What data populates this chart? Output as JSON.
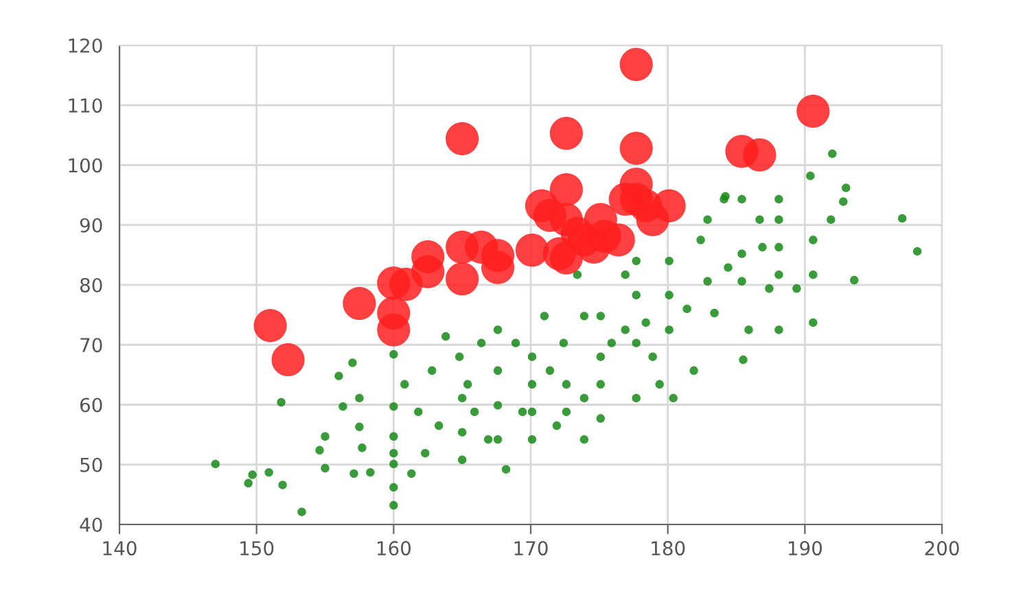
{
  "chart_data": {
    "type": "scatter",
    "xlim": [
      140,
      200
    ],
    "xticks": [
      140,
      150,
      160,
      170,
      180,
      190,
      200
    ],
    "ylim": [
      40,
      120
    ],
    "yticks": [
      40,
      50,
      60,
      70,
      80,
      90,
      100,
      110,
      120
    ],
    "grid": true,
    "marker": "circle",
    "series": [
      {
        "color": "#168a16",
        "x": [
          147.0,
          149.4,
          149.7,
          150.9,
          153.3,
          151.8,
          151.9,
          154.6,
          155.0,
          155.0,
          156.0,
          156.3,
          157.0,
          157.5,
          157.5,
          157.1,
          157.7,
          158.3,
          160.0,
          160.0,
          160.0,
          160.0,
          160.0,
          160.0,
          160.0,
          160.8,
          161.3,
          161.8,
          162.3,
          162.8,
          163.3,
          163.8,
          164.8,
          165.0,
          165.0,
          165.0,
          165.4,
          165.9,
          166.4,
          166.9,
          167.6,
          167.6,
          167.6,
          167.6,
          168.2,
          168.9,
          169.4,
          170.1,
          170.1,
          170.1,
          170.1,
          171.0,
          171.4,
          171.9,
          172.4,
          172.6,
          172.6,
          173.4,
          173.9,
          173.9,
          173.9,
          175.1,
          175.1,
          175.1,
          175.1,
          175.9,
          176.9,
          176.9,
          177.7,
          177.7,
          177.7,
          177.7,
          178.4,
          178.9,
          179.4,
          180.1,
          180.1,
          180.1,
          180.4,
          181.4,
          181.9,
          182.4,
          182.9,
          182.9,
          183.4,
          184.1,
          184.4,
          185.4,
          185.4,
          185.4,
          185.5,
          185.9,
          186.7,
          186.9,
          187.4,
          188.1,
          188.1,
          188.1,
          188.1,
          188.1,
          189.4,
          190.4,
          190.6,
          190.6,
          190.6,
          192.0,
          191.9,
          192.8,
          193.0,
          193.6,
          197.1,
          198.2,
          184.2
        ],
        "values": [
          50.1,
          46.9,
          48.3,
          48.7,
          42.1,
          60.4,
          46.6,
          52.4,
          54.7,
          49.4,
          64.8,
          59.7,
          67.0,
          61.1,
          56.3,
          48.5,
          52.8,
          48.7,
          51.9,
          68.4,
          59.7,
          54.7,
          50.1,
          46.2,
          43.2,
          63.4,
          48.5,
          58.8,
          51.9,
          65.7,
          56.5,
          71.4,
          68.0,
          61.1,
          55.4,
          50.8,
          63.4,
          58.8,
          70.3,
          54.2,
          72.5,
          65.7,
          59.9,
          54.2,
          49.2,
          70.3,
          58.8,
          68.0,
          63.4,
          58.8,
          54.2,
          74.8,
          65.7,
          56.5,
          70.3,
          63.4,
          58.8,
          81.7,
          74.8,
          61.1,
          54.2,
          74.8,
          68.0,
          63.4,
          57.7,
          70.3,
          81.7,
          72.5,
          84.0,
          78.3,
          70.3,
          61.1,
          73.7,
          68.0,
          63.4,
          84.0,
          78.3,
          72.5,
          61.1,
          76.0,
          65.7,
          87.5,
          90.9,
          80.6,
          75.3,
          94.3,
          82.9,
          94.3,
          85.2,
          80.6,
          67.5,
          72.5,
          90.9,
          86.3,
          79.4,
          94.3,
          90.9,
          86.3,
          81.7,
          72.5,
          79.4,
          98.2,
          87.5,
          81.7,
          73.7,
          101.9,
          90.9,
          93.9,
          96.2,
          80.8,
          91.1,
          85.6,
          94.8
        ]
      },
      {
        "type": "bubble",
        "color": "#ff1f1f",
        "x": [
          151.0,
          152.3,
          157.5,
          160.0,
          160.0,
          160.0,
          160.9,
          162.5,
          162.5,
          165.0,
          165.0,
          165.0,
          166.4,
          167.6,
          167.6,
          170.1,
          170.8,
          171.4,
          172.1,
          172.6,
          172.6,
          172.6,
          172.6,
          173.9,
          174.6,
          175.1,
          175.4,
          176.4,
          177.7,
          177.7,
          177.7,
          177.7,
          178.4,
          178.9,
          180.1,
          185.4,
          186.7,
          190.6,
          176.9,
          173.4
        ],
        "values": [
          73.2,
          67.5,
          76.9,
          80.3,
          75.3,
          72.5,
          80.1,
          84.7,
          82.2,
          104.4,
          86.3,
          81.0,
          86.3,
          84.9,
          82.9,
          85.8,
          93.2,
          91.6,
          85.2,
          105.3,
          95.9,
          90.9,
          84.5,
          87.5,
          86.3,
          90.9,
          88.1,
          87.5,
          116.8,
          102.8,
          96.8,
          94.3,
          93.2,
          90.9,
          93.2,
          102.3,
          101.7,
          109.0,
          94.3,
          88.6
        ],
        "sizes": [
          1,
          1,
          1,
          1,
          1,
          1,
          1,
          1,
          1,
          1,
          1,
          1,
          1,
          1,
          1,
          1,
          1,
          1,
          1,
          1,
          1,
          1,
          1,
          1,
          1,
          1,
          1,
          1,
          1,
          1,
          1,
          1,
          1,
          1,
          1,
          1,
          1,
          1,
          1,
          1
        ]
      }
    ]
  }
}
